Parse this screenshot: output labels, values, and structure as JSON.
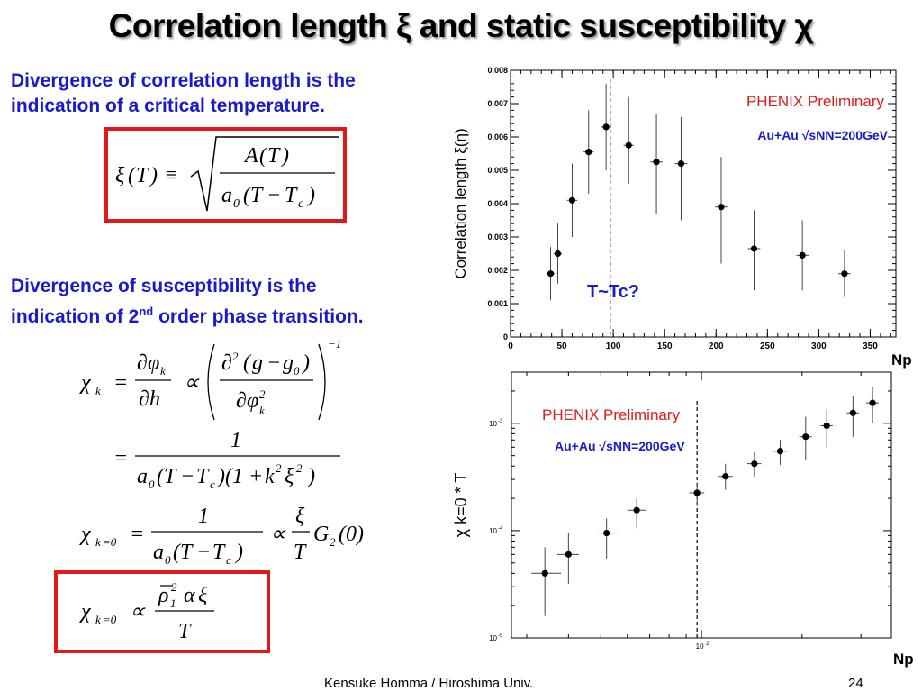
{
  "slide": {
    "title": "Correlation length ξ and static susceptibility χ",
    "text1_line1": "Divergence of correlation length is the",
    "text1_line2": "indication of a critical temperature.",
    "text2_line1": "Divergence of susceptibility is the",
    "text2_line2_pre": "indication of 2",
    "text2_line2_sup": "nd",
    "text2_line2_post": " order phase transition.",
    "footer_author": "Kensuke Homma / Hiroshima Univ.",
    "page_number": "24",
    "tc_label": "T~Tc?"
  },
  "equations": {
    "xi_def": "ξ(T) ≡ √( A(T) / a₀(T − T_c) )",
    "chi_k": "χ_k = ∂φ_k/∂h ∝ ( ∂²(g − g₀)/∂φ²_k )^−1",
    "chi_k_2": "= 1 / ( a₀(T − T_c)(1 + k²ξ²) )",
    "chi_k0": "χ_k=0 = 1 / ( a₀(T − T_c) ) ∝ (ξ/T) G₂(0)",
    "chi_k0_boxed": "χ_k=0 ∝ ρ̄₁² α ξ / T"
  },
  "colors": {
    "title_text": "#000000",
    "body_text": "#1a1acc",
    "highlight_box": "#e01818",
    "label_red": "#e01818"
  },
  "chart_data": [
    {
      "type": "scatter",
      "title": "",
      "xlabel": "Np",
      "ylabel": "Correlation length ξ(η)",
      "annotation": "PHENIX Preliminary",
      "subannotation": "Au+Au  √sNN=200GeV",
      "xlim": [
        0,
        375
      ],
      "ylim": [
        0,
        0.008
      ],
      "xticks": [
        0,
        50,
        100,
        150,
        200,
        250,
        300,
        350
      ],
      "yticks": [
        0,
        0.001,
        0.002,
        0.003,
        0.004,
        0.005,
        0.006,
        0.007,
        0.008
      ],
      "ytick_labels": [
        "0",
        "0.001",
        "0.002",
        "0.003",
        "0.004",
        "0.005",
        "0.006",
        "0.007",
        "0.008"
      ],
      "dashed_vline_x": 97,
      "points": [
        {
          "x": 39,
          "y": 0.0019,
          "ylo": 0.0011,
          "yhi": 0.0027,
          "xerr": 4
        },
        {
          "x": 46,
          "y": 0.0025,
          "ylo": 0.0016,
          "yhi": 0.0034,
          "xerr": 4
        },
        {
          "x": 60,
          "y": 0.0041,
          "ylo": 0.003,
          "yhi": 0.0052,
          "xerr": 5
        },
        {
          "x": 76,
          "y": 0.00555,
          "ylo": 0.0043,
          "yhi": 0.0068,
          "xerr": 5
        },
        {
          "x": 93,
          "y": 0.0063,
          "ylo": 0.005,
          "yhi": 0.0076,
          "xerr": 5
        },
        {
          "x": 115,
          "y": 0.00575,
          "ylo": 0.0046,
          "yhi": 0.0072,
          "xerr": 5
        },
        {
          "x": 142,
          "y": 0.00525,
          "ylo": 0.0037,
          "yhi": 0.0067,
          "xerr": 6
        },
        {
          "x": 166,
          "y": 0.0052,
          "ylo": 0.0035,
          "yhi": 0.0066,
          "xerr": 6
        },
        {
          "x": 205,
          "y": 0.0039,
          "ylo": 0.0022,
          "yhi": 0.0054,
          "xerr": 6
        },
        {
          "x": 237,
          "y": 0.00265,
          "ylo": 0.0014,
          "yhi": 0.0038,
          "xerr": 6
        },
        {
          "x": 284,
          "y": 0.00245,
          "ylo": 0.0014,
          "yhi": 0.0035,
          "xerr": 6
        },
        {
          "x": 325,
          "y": 0.0019,
          "ylo": 0.0012,
          "yhi": 0.0026,
          "xerr": 6
        }
      ]
    },
    {
      "type": "scatter",
      "title": "",
      "xlabel": "Np",
      "ylabel": "χ k=0 * T",
      "log_x": true,
      "log_y": true,
      "annotation": "PHENIX Preliminary",
      "subannotation": "Au+Au  √sNN=200GeV",
      "xlim": [
        27,
        370
      ],
      "ylim": [
        1e-05,
        0.003
      ],
      "ytick_labels": [
        {
          "value": 0.001,
          "base": "10",
          "exp": "-3"
        },
        {
          "value": 0.0001,
          "base": "10",
          "exp": "-4"
        },
        {
          "value": 1e-05,
          "base": "10",
          "exp": "-5"
        }
      ],
      "xtick_labels": [
        {
          "value": 100,
          "base": "10",
          "exp": "2"
        }
      ],
      "dashed_vline_x": 97,
      "points": [
        {
          "x": 34,
          "y": 4e-05,
          "ylo": 1.6e-05,
          "yhi": 7e-05,
          "xlo": 31,
          "xhi": 38
        },
        {
          "x": 40,
          "y": 6e-05,
          "ylo": 3.2e-05,
          "yhi": 9.5e-05,
          "xlo": 37,
          "xhi": 43
        },
        {
          "x": 52,
          "y": 9.5e-05,
          "ylo": 5.5e-05,
          "yhi": 0.00013,
          "xlo": 49,
          "xhi": 56
        },
        {
          "x": 64,
          "y": 0.000155,
          "ylo": 0.000105,
          "yhi": 0.0002,
          "xlo": 60,
          "xhi": 68
        },
        {
          "x": 97,
          "y": 0.000225,
          "ylo": 0.00017,
          "yhi": 0.00028,
          "xlo": 92,
          "xhi": 102
        },
        {
          "x": 118,
          "y": 0.00032,
          "ylo": 0.00024,
          "yhi": 0.00042,
          "xlo": 112,
          "xhi": 124
        },
        {
          "x": 144,
          "y": 0.00042,
          "ylo": 0.00032,
          "yhi": 0.00054,
          "xlo": 137,
          "xhi": 151
        },
        {
          "x": 172,
          "y": 0.00055,
          "ylo": 0.00041,
          "yhi": 0.0007,
          "xlo": 164,
          "xhi": 180
        },
        {
          "x": 205,
          "y": 0.00075,
          "ylo": 0.00045,
          "yhi": 0.00115,
          "xlo": 196,
          "xhi": 214
        },
        {
          "x": 237,
          "y": 0.00095,
          "ylo": 0.0006,
          "yhi": 0.00135,
          "xlo": 227,
          "xhi": 247
        },
        {
          "x": 284,
          "y": 0.00125,
          "ylo": 0.00075,
          "yhi": 0.0018,
          "xlo": 272,
          "xhi": 296
        },
        {
          "x": 325,
          "y": 0.00155,
          "ylo": 0.001,
          "yhi": 0.0022,
          "xlo": 311,
          "xhi": 339
        }
      ]
    }
  ]
}
